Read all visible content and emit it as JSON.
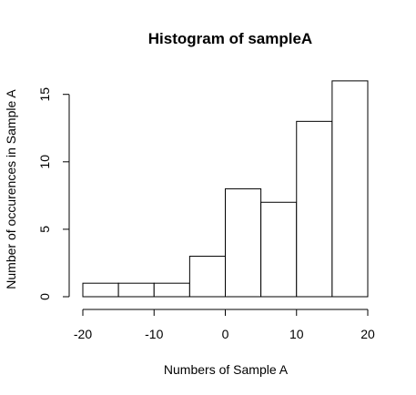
{
  "chart_data": {
    "type": "bar",
    "title": "Histogram of sampleA",
    "xlabel": "Numbers of Sample A",
    "ylabel": "Number of occurences in Sample A",
    "bins": [
      {
        "from": -20,
        "to": -15,
        "count": 1
      },
      {
        "from": -15,
        "to": -10,
        "count": 1
      },
      {
        "from": -10,
        "to": -5,
        "count": 1
      },
      {
        "from": -5,
        "to": 0,
        "count": 3
      },
      {
        "from": 0,
        "to": 5,
        "count": 8
      },
      {
        "from": 5,
        "to": 10,
        "count": 7
      },
      {
        "from": 10,
        "to": 15,
        "count": 13
      },
      {
        "from": 15,
        "to": 20,
        "count": 16
      }
    ],
    "xlim": [
      -20,
      20
    ],
    "ylim": [
      0,
      16
    ],
    "x_ticks": [
      -20,
      -10,
      0,
      10,
      20
    ],
    "x_tick_labels": [
      "-20",
      "-10",
      "0",
      "10",
      "20"
    ],
    "y_ticks": [
      0,
      5,
      10,
      15
    ],
    "y_tick_labels": [
      "0",
      "5",
      "10",
      "15"
    ],
    "grid": false,
    "bar_fill": "#ffffff",
    "bar_stroke": "#000000"
  }
}
